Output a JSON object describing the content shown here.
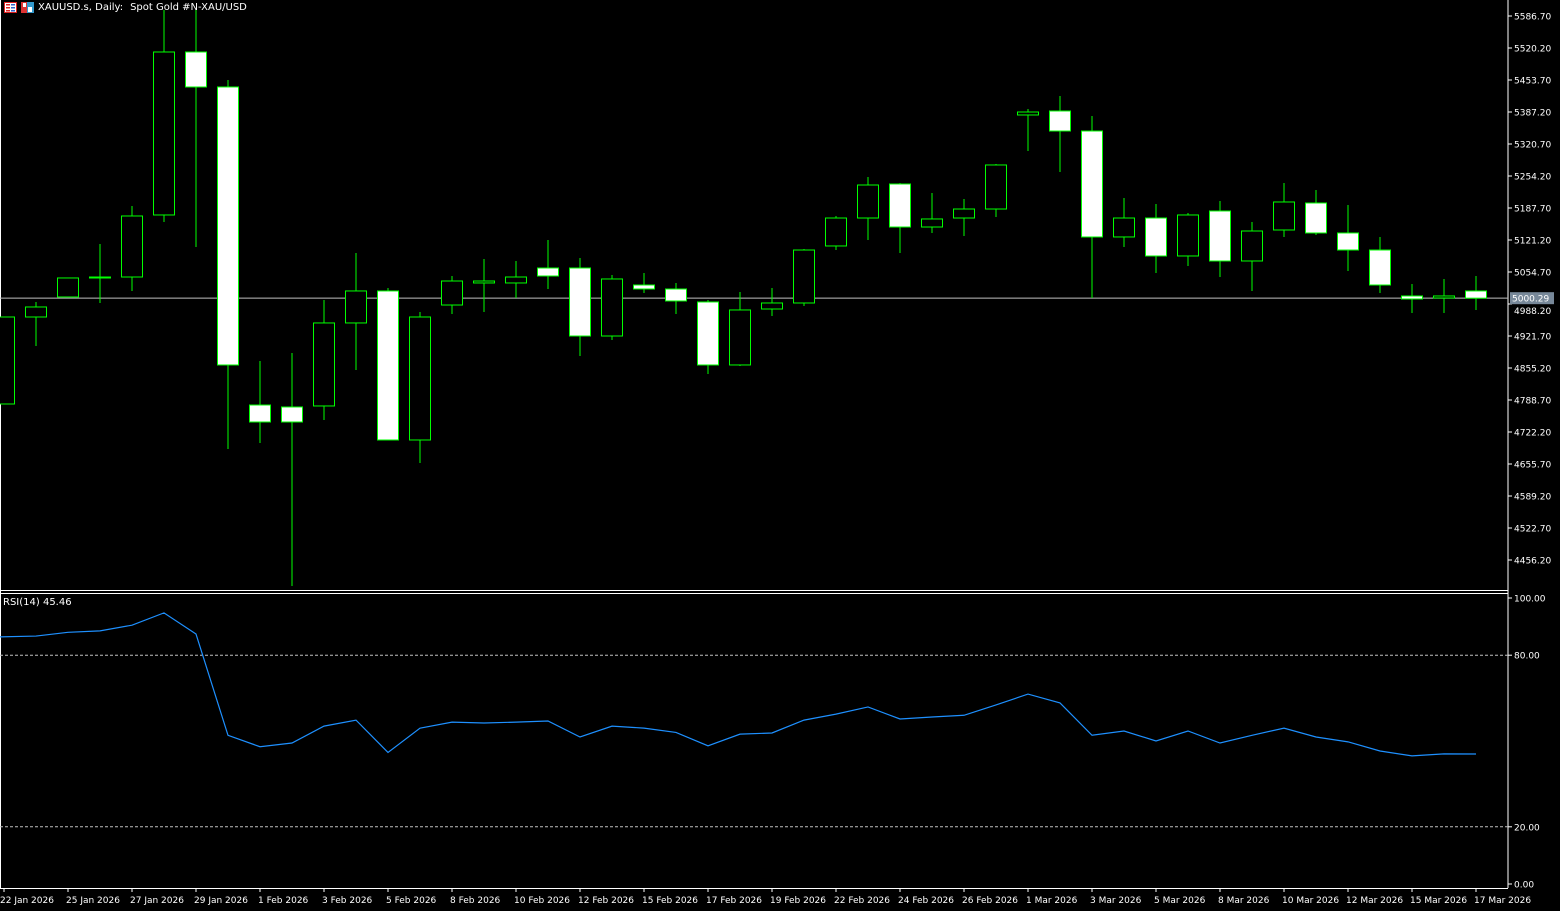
{
  "header": {
    "symbol": "XAUUSD.s, Daily:",
    "description": "Spot Gold #N-XAU/USD",
    "icons": [
      "chart-list-icon",
      "save-template-icon"
    ]
  },
  "colors": {
    "background": "#000000",
    "candle_outline": "#00ff00",
    "bull_fill": "#000000",
    "bear_fill": "#ffffff",
    "rsi_line": "#1e90ff",
    "grid_level": "#c0c0c0",
    "price_box": "#778899"
  },
  "chart_data": {
    "type": "candlestick",
    "title": "XAUUSD.s, Daily: Spot Gold #N-XAU/USD",
    "current_price": "5000.29",
    "ylim": [
      4402,
      5600
    ],
    "y_ticks": [
      "5586.70",
      "5520.20",
      "5453.70",
      "5387.20",
      "5320.70",
      "5254.20",
      "5187.70",
      "5121.20",
      "5054.70",
      "4988.20",
      "4921.70",
      "4855.20",
      "4788.70",
      "4722.20",
      "4655.70",
      "4589.20",
      "4522.70",
      "4456.20"
    ],
    "x_labels": [
      "22 Jan 2026",
      "25 Jan 2026",
      "27 Jan 2026",
      "29 Jan 2026",
      "1 Feb 2026",
      "3 Feb 2026",
      "5 Feb 2026",
      "8 Feb 2026",
      "10 Feb 2026",
      "12 Feb 2026",
      "15 Feb 2026",
      "17 Feb 2026",
      "19 Feb 2026",
      "22 Feb 2026",
      "24 Feb 2026",
      "26 Feb 2026",
      "1 Mar 2026",
      "3 Mar 2026",
      "5 Mar 2026",
      "8 Mar 2026",
      "10 Mar 2026",
      "12 Mar 2026",
      "15 Mar 2026",
      "17 Mar 2026"
    ],
    "ohlc": [
      [
        4780.4,
        4961.2,
        4780.4,
        4961.2
      ],
      [
        4961.2,
        4992.4,
        4900.9,
        4982.0
      ],
      [
        5002.8,
        5042.3,
        5002.8,
        5042.3
      ],
      [
        5042.3,
        5112.9,
        4990.3,
        5044.3
      ],
      [
        5044.3,
        5191.9,
        5015.3,
        5171.1
      ],
      [
        5173.2,
        5599.2,
        5158.6,
        5511.9
      ],
      [
        5511.9,
        5599.2,
        5106.7,
        5439.2
      ],
      [
        5439.2,
        5453.7,
        4686.9,
        4861.5
      ],
      [
        4778.3,
        4869.8,
        4699.4,
        4743.0
      ],
      [
        4774.2,
        4886.4,
        4402.2,
        4743.0
      ],
      [
        4776.3,
        4996.5,
        4747.2,
        4948.8
      ],
      [
        4948.8,
        5094.2,
        4851.1,
        5015.3
      ],
      [
        5015.3,
        5021.5,
        4705.6,
        4705.6
      ],
      [
        4705.6,
        4971.6,
        4657.8,
        4961.2
      ],
      [
        4986.1,
        5046.4,
        4967.5,
        5036.0
      ],
      [
        5031.9,
        5081.7,
        4971.6,
        5036.0
      ],
      [
        5031.9,
        5077.6,
        5000.7,
        5044.3
      ],
      [
        5063.0,
        5121.2,
        5019.4,
        5046.4
      ],
      [
        5063.0,
        5083.8,
        4880.2,
        4921.7
      ],
      [
        4921.7,
        5048.5,
        4913.4,
        5040.2
      ],
      [
        5027.7,
        5052.6,
        5011.1,
        5019.4
      ],
      [
        5019.4,
        5031.9,
        4967.5,
        4994.5
      ],
      [
        4992.4,
        4996.5,
        4842.8,
        4861.5
      ],
      [
        4861.5,
        5013.2,
        4859.4,
        4975.8
      ],
      [
        4977.8,
        5021.5,
        4963.3,
        4990.3
      ],
      [
        4990.3,
        5102.5,
        4984.1,
        5100.4
      ],
      [
        5108.8,
        5171.1,
        5100.4,
        5166.9
      ],
      [
        5166.9,
        5252.1,
        5121.2,
        5235.5
      ],
      [
        5237.6,
        5239.7,
        5094.2,
        5148.2
      ],
      [
        5148.2,
        5218.9,
        5135.8,
        5164.9
      ],
      [
        5166.9,
        5206.4,
        5129.5,
        5185.6
      ],
      [
        5185.6,
        5279.2,
        5169.0,
        5277.1
      ],
      [
        5381.0,
        5393.4,
        5306.2,
        5387.2
      ],
      [
        5389.3,
        5420.5,
        5262.5,
        5347.7
      ],
      [
        5347.7,
        5378.9,
        5000.7,
        5127.5
      ],
      [
        5127.5,
        5208.5,
        5106.7,
        5166.9
      ],
      [
        5166.9,
        5196.0,
        5052.6,
        5088.0
      ],
      [
        5088.0,
        5177.3,
        5067.2,
        5173.2
      ],
      [
        5181.5,
        5202.3,
        5044.3,
        5077.6
      ],
      [
        5077.6,
        5158.6,
        5015.3,
        5139.9
      ],
      [
        5142.0,
        5239.7,
        5127.5,
        5200.2
      ],
      [
        5198.1,
        5225.1,
        5131.6,
        5135.8
      ],
      [
        5135.8,
        5193.9,
        5056.8,
        5100.4
      ],
      [
        5100.4,
        5127.5,
        5011.1,
        5027.7
      ],
      [
        5004.9,
        5029.8,
        4969.5,
        4998.6
      ],
      [
        5000.7,
        5040.2,
        4969.5,
        5004.9
      ],
      [
        5015.3,
        5046.4,
        4975.8,
        5000.3
      ]
    ],
    "rsi": {
      "label": "RSI(14) 45.46",
      "levels": [
        "100.00",
        "80.00",
        "20.00",
        "0.00"
      ],
      "values": [
        86.4,
        86.7,
        88.0,
        88.5,
        90.5,
        94.8,
        87.4,
        52.0,
        48.0,
        49.3,
        55.2,
        57.3,
        46.0,
        54.5,
        56.6,
        56.3,
        56.6,
        57.0,
        51.4,
        55.2,
        54.5,
        53.0,
        48.3,
        52.4,
        52.8,
        57.3,
        59.4,
        61.9,
        57.7,
        58.4,
        59.0,
        62.6,
        66.4,
        63.3,
        52.0,
        53.5,
        50.0,
        53.5,
        49.3,
        52.0,
        54.5,
        51.4,
        49.7,
        46.5,
        44.8,
        45.5,
        45.46
      ]
    }
  }
}
